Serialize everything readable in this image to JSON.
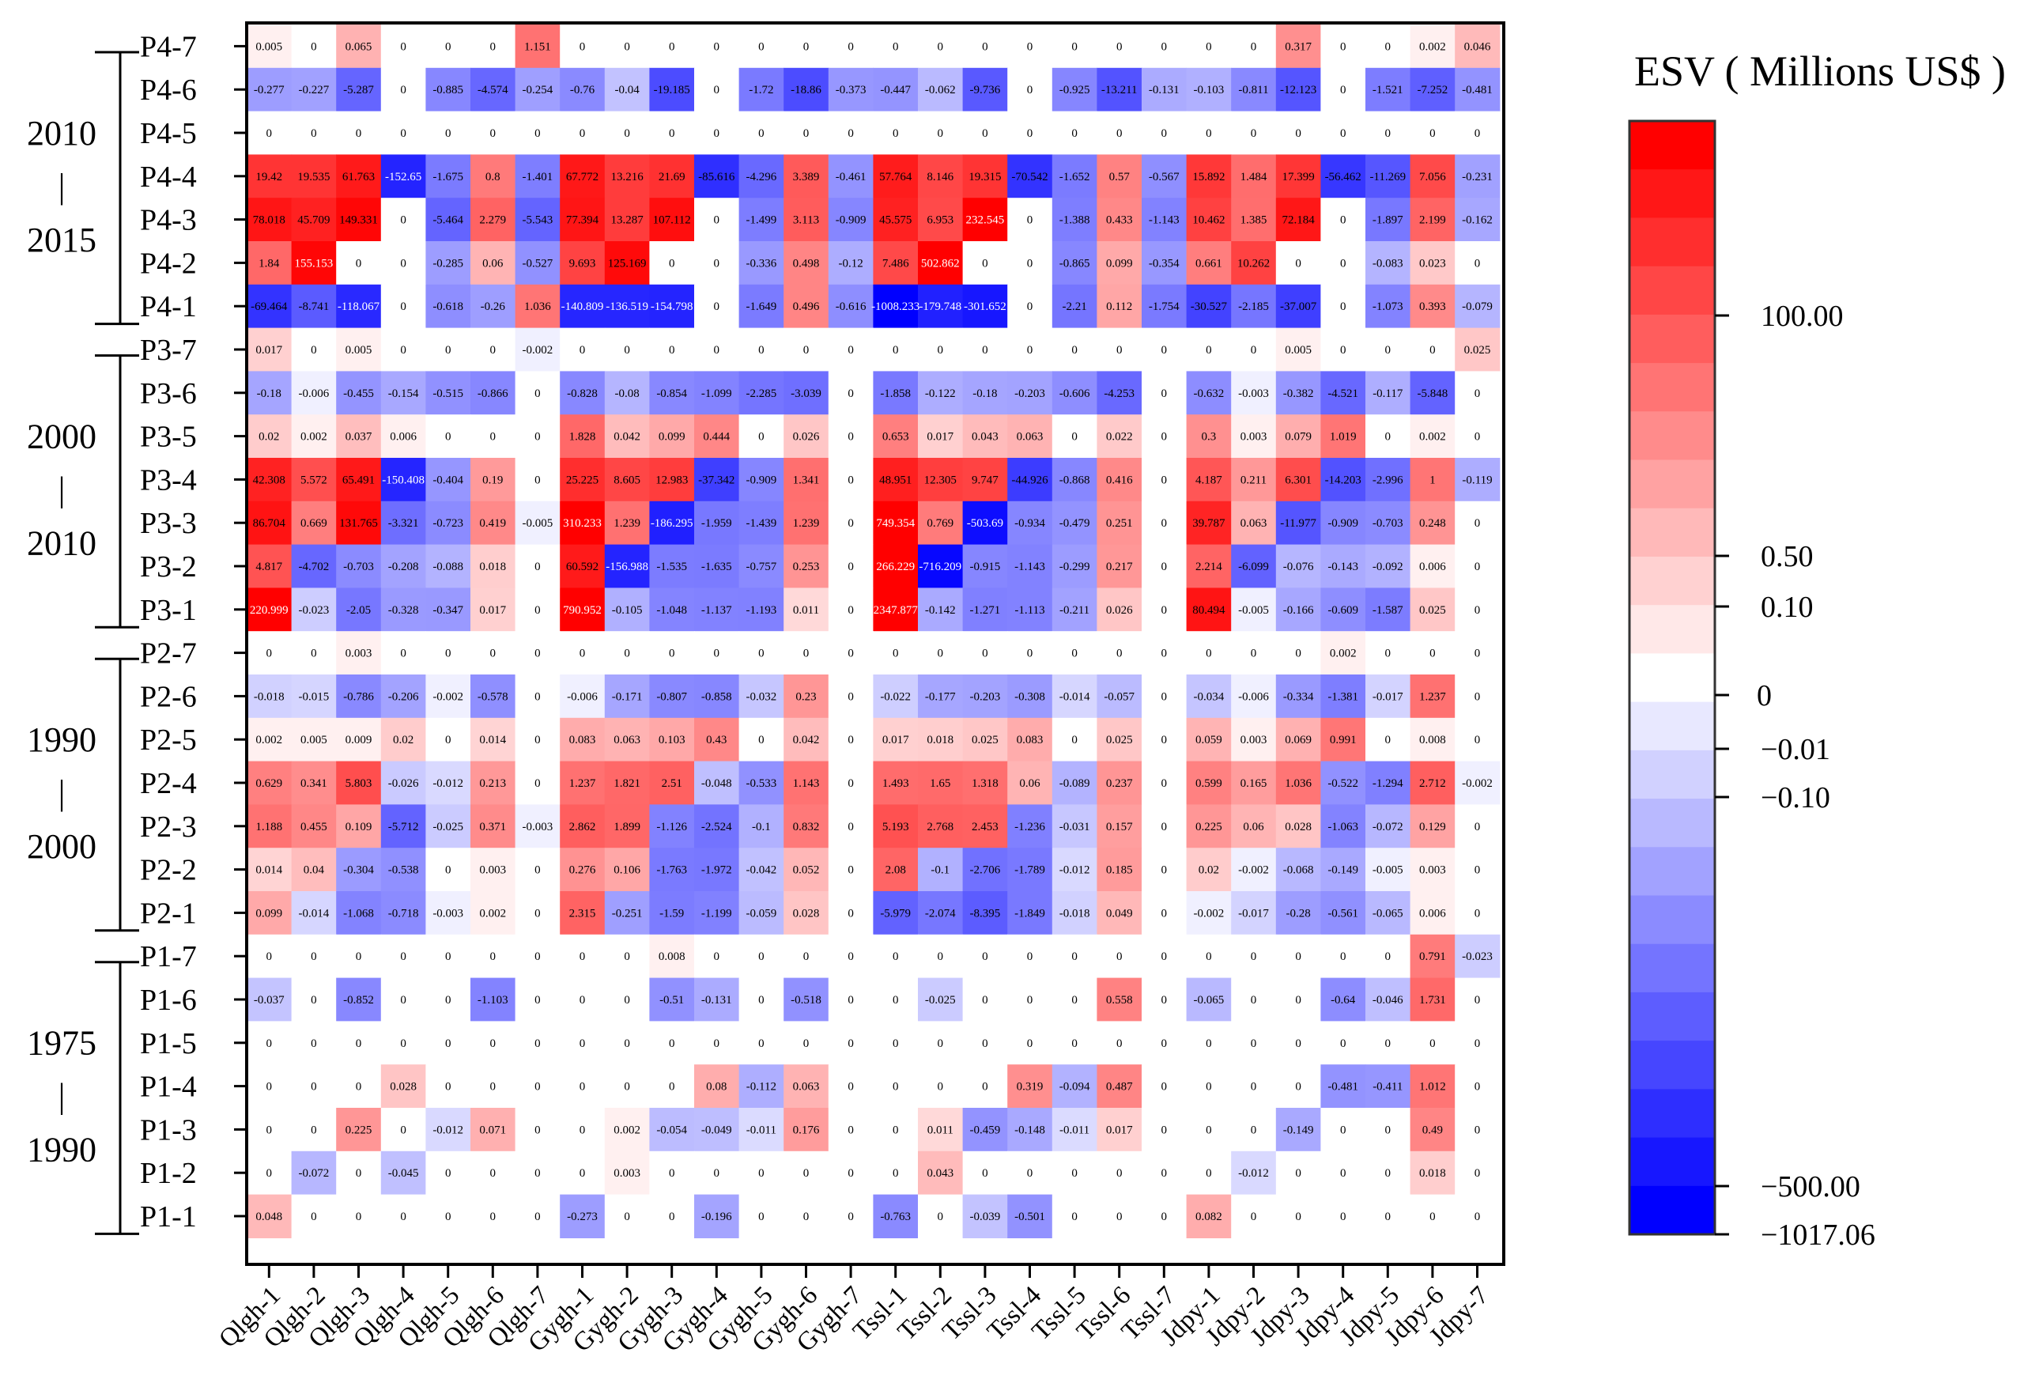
{
  "chart_data": {
    "type": "heatmap",
    "title": "",
    "xlabel": "",
    "ylabel": "",
    "colorbar": {
      "title": "ESV ( Millions US$ )",
      "ticks": [
        "100.00",
        "0.50",
        "0.10",
        "0",
        "−0.01",
        "−0.10",
        "−500.00",
        "−1017.06"
      ],
      "max": 200,
      "min": -1017.06,
      "positive_color": "#ff0000",
      "negative_color": "#0000ff",
      "zero_color": "#ffffff"
    },
    "columns": [
      "Qlgh-1",
      "Qlgh-2",
      "Qlgh-3",
      "Qlgh-4",
      "Qlgh-5",
      "Qlgh-6",
      "Qlgh-7",
      "Gygh-1",
      "Gygh-2",
      "Gygh-3",
      "Gygh-4",
      "Gygh-5",
      "Gygh-6",
      "Gygh-7",
      "Tssl-1",
      "Tssl-2",
      "Tssl-3",
      "Tssl-4",
      "Tssl-5",
      "Tssl-6",
      "Tssl-7",
      "Jdpy-1",
      "Jdpy-2",
      "Jdpy-3",
      "Jdpy-4",
      "Jdpy-5",
      "Jdpy-6",
      "Jdpy-7"
    ],
    "rows": [
      "P4-7",
      "P4-6",
      "P4-5",
      "P4-4",
      "P4-3",
      "P4-2",
      "P4-1",
      "P3-7",
      "P3-6",
      "P3-5",
      "P3-4",
      "P3-3",
      "P3-2",
      "P3-1",
      "P2-7",
      "P2-6",
      "P2-5",
      "P2-4",
      "P2-3",
      "P2-2",
      "P2-1",
      "P1-7",
      "P1-6",
      "P1-5",
      "P1-4",
      "P1-3",
      "P1-2",
      "P1-1"
    ],
    "periods": [
      {
        "start": "2010",
        "sep": "|",
        "end": "2015"
      },
      {
        "start": "2000",
        "sep": "|",
        "end": "2010"
      },
      {
        "start": "1990",
        "sep": "|",
        "end": "2000"
      },
      {
        "start": "1975",
        "sep": "|",
        "end": "1990"
      }
    ],
    "values": [
      [
        "0.005",
        "0",
        "0.065",
        "0",
        "0",
        "0",
        "1.151",
        "0",
        "0",
        "0",
        "0",
        "0",
        "0",
        "0",
        "0",
        "0",
        "0",
        "0",
        "0",
        "0",
        "0",
        "0",
        "0",
        "0.317",
        "0",
        "0",
        "0.002",
        "0.046"
      ],
      [
        "-0.277",
        "-0.227",
        "-5.287",
        "0",
        "-0.885",
        "-4.574",
        "-0.254",
        "-0.76",
        "-0.04",
        "-19.185",
        "0",
        "-1.72",
        "-18.86",
        "-0.373",
        "-0.447",
        "-0.062",
        "-9.736",
        "0",
        "-0.925",
        "-13.211",
        "-0.131",
        "-0.103",
        "-0.811",
        "-12.123",
        "0",
        "-1.521",
        "-7.252",
        "-0.481"
      ],
      [
        "0",
        "0",
        "0",
        "0",
        "0",
        "0",
        "0",
        "0",
        "0",
        "0",
        "0",
        "0",
        "0",
        "0",
        "0",
        "0",
        "0",
        "0",
        "0",
        "0",
        "0",
        "0",
        "0",
        "0",
        "0",
        "0",
        "0",
        "0"
      ],
      [
        "19.42",
        "19.535",
        "61.763",
        "-152.65",
        "-1.675",
        "0.8",
        "-1.401",
        "67.772",
        "13.216",
        "21.69",
        "-85.616",
        "-4.296",
        "3.389",
        "-0.461",
        "57.764",
        "8.146",
        "19.315",
        "-70.542",
        "-1.652",
        "0.57",
        "-0.567",
        "15.892",
        "1.484",
        "17.399",
        "-56.462",
        "-11.269",
        "7.056",
        "-0.231"
      ],
      [
        "78.018",
        "45.709",
        "149.331",
        "0",
        "-5.464",
        "2.279",
        "-5.543",
        "77.394",
        "13.287",
        "107.112",
        "0",
        "-1.499",
        "3.113",
        "-0.909",
        "45.575",
        "6.953",
        "232.545",
        "0",
        "-1.388",
        "0.433",
        "-1.143",
        "10.462",
        "1.385",
        "72.184",
        "0",
        "-1.897",
        "2.199",
        "-0.162"
      ],
      [
        "1.84",
        "155.153",
        "0",
        "0",
        "-0.285",
        "0.06",
        "-0.527",
        "9.693",
        "125.169",
        "0",
        "0",
        "-0.336",
        "0.498",
        "-0.12",
        "7.486",
        "502.862",
        "0",
        "0",
        "-0.865",
        "0.099",
        "-0.354",
        "0.661",
        "10.262",
        "0",
        "0",
        "-0.083",
        "0.023",
        "0"
      ],
      [
        "-69.464",
        "-8.741",
        "-118.067",
        "0",
        "-0.618",
        "-0.26",
        "1.036",
        "-140.809",
        "-136.519",
        "-154.798",
        "0",
        "-1.649",
        "0.496",
        "-0.616",
        "-1008.233",
        "-179.748",
        "-301.652",
        "0",
        "-2.21",
        "0.112",
        "-1.754",
        "-30.527",
        "-2.185",
        "-37.007",
        "0",
        "-1.073",
        "0.393",
        "-0.079"
      ],
      [
        "0.017",
        "0",
        "0.005",
        "0",
        "0",
        "0",
        "-0.002",
        "0",
        "0",
        "0",
        "0",
        "0",
        "0",
        "0",
        "0",
        "0",
        "0",
        "0",
        "0",
        "0",
        "0",
        "0",
        "0",
        "0.005",
        "0",
        "0",
        "0",
        "0.025"
      ],
      [
        "-0.18",
        "-0.006",
        "-0.455",
        "-0.154",
        "-0.515",
        "-0.866",
        "0",
        "-0.828",
        "-0.08",
        "-0.854",
        "-1.099",
        "-2.285",
        "-3.039",
        "0",
        "-1.858",
        "-0.122",
        "-0.18",
        "-0.203",
        "-0.606",
        "-4.253",
        "0",
        "-0.632",
        "-0.003",
        "-0.382",
        "-4.521",
        "-0.117",
        "-5.848",
        "0"
      ],
      [
        "0.02",
        "0.002",
        "0.037",
        "0.006",
        "0",
        "0",
        "0",
        "1.828",
        "0.042",
        "0.099",
        "0.444",
        "0",
        "0.026",
        "0",
        "0.653",
        "0.017",
        "0.043",
        "0.063",
        "0",
        "0.022",
        "0",
        "0.3",
        "0.003",
        "0.079",
        "1.019",
        "0",
        "0.002",
        "0"
      ],
      [
        "42.308",
        "5.572",
        "65.491",
        "-150.408",
        "-0.404",
        "0.19",
        "0",
        "25.225",
        "8.605",
        "12.983",
        "-37.342",
        "-0.909",
        "1.341",
        "0",
        "48.951",
        "12.305",
        "9.747",
        "-44.926",
        "-0.868",
        "0.416",
        "0",
        "4.187",
        "0.211",
        "6.301",
        "-14.203",
        "-2.996",
        "1",
        "-0.119"
      ],
      [
        "86.704",
        "0.669",
        "131.765",
        "-3.321",
        "-0.723",
        "0.419",
        "-0.005",
        "310.233",
        "1.239",
        "-186.295",
        "-1.959",
        "-1.439",
        "1.239",
        "0",
        "749.354",
        "0.769",
        "-503.69",
        "-0.934",
        "-0.479",
        "0.251",
        "0",
        "39.787",
        "0.063",
        "-11.977",
        "-0.909",
        "-0.703",
        "0.248",
        "0"
      ],
      [
        "4.817",
        "-4.702",
        "-0.703",
        "-0.208",
        "-0.088",
        "0.018",
        "0",
        "60.592",
        "-156.988",
        "-1.535",
        "-1.635",
        "-0.757",
        "0.253",
        "0",
        "266.229",
        "-716.209",
        "-0.915",
        "-1.143",
        "-0.299",
        "0.217",
        "0",
        "2.214",
        "-6.099",
        "-0.076",
        "-0.143",
        "-0.092",
        "0.006",
        "0"
      ],
      [
        "220.999",
        "-0.023",
        "-2.05",
        "-0.328",
        "-0.347",
        "0.017",
        "0",
        "790.952",
        "-0.105",
        "-1.048",
        "-1.137",
        "-1.193",
        "0.011",
        "0",
        "2347.877",
        "-0.142",
        "-1.271",
        "-1.113",
        "-0.211",
        "0.026",
        "0",
        "80.494",
        "-0.005",
        "-0.166",
        "-0.609",
        "-1.587",
        "0.025",
        "0"
      ],
      [
        "0",
        "0",
        "0.003",
        "0",
        "0",
        "0",
        "0",
        "0",
        "0",
        "0",
        "0",
        "0",
        "0",
        "0",
        "0",
        "0",
        "0",
        "0",
        "0",
        "0",
        "0",
        "0",
        "0",
        "0",
        "0.002",
        "0",
        "0",
        "0"
      ],
      [
        "-0.018",
        "-0.015",
        "-0.786",
        "-0.206",
        "-0.002",
        "-0.578",
        "0",
        "-0.006",
        "-0.171",
        "-0.807",
        "-0.858",
        "-0.032",
        "0.23",
        "0",
        "-0.022",
        "-0.177",
        "-0.203",
        "-0.308",
        "-0.014",
        "-0.057",
        "0",
        "-0.034",
        "-0.006",
        "-0.334",
        "-1.381",
        "-0.017",
        "1.237",
        "0"
      ],
      [
        "0.002",
        "0.005",
        "0.009",
        "0.02",
        "0",
        "0.014",
        "0",
        "0.083",
        "0.063",
        "0.103",
        "0.43",
        "0",
        "0.042",
        "0",
        "0.017",
        "0.018",
        "0.025",
        "0.083",
        "0",
        "0.025",
        "0",
        "0.059",
        "0.003",
        "0.069",
        "0.991",
        "0",
        "0.008",
        "0"
      ],
      [
        "0.629",
        "0.341",
        "5.803",
        "-0.026",
        "-0.012",
        "0.213",
        "0",
        "1.237",
        "1.821",
        "2.51",
        "-0.048",
        "-0.533",
        "1.143",
        "0",
        "1.493",
        "1.65",
        "1.318",
        "0.06",
        "-0.089",
        "0.237",
        "0",
        "0.599",
        "0.165",
        "1.036",
        "-0.522",
        "-1.294",
        "2.712",
        "-0.002"
      ],
      [
        "1.188",
        "0.455",
        "0.109",
        "-5.712",
        "-0.025",
        "0.371",
        "-0.003",
        "2.862",
        "1.899",
        "-1.126",
        "-2.524",
        "-0.1",
        "0.832",
        "0",
        "5.193",
        "2.768",
        "2.453",
        "-1.236",
        "-0.031",
        "0.157",
        "0",
        "0.225",
        "0.06",
        "0.028",
        "-1.063",
        "-0.072",
        "0.129",
        "0"
      ],
      [
        "0.014",
        "0.04",
        "-0.304",
        "-0.538",
        "0",
        "0.003",
        "0",
        "0.276",
        "0.106",
        "-1.763",
        "-1.972",
        "-0.042",
        "0.052",
        "0",
        "2.08",
        "-0.1",
        "-2.706",
        "-1.789",
        "-0.012",
        "0.185",
        "0",
        "0.02",
        "-0.002",
        "-0.068",
        "-0.149",
        "-0.005",
        "0.003",
        "0"
      ],
      [
        "0.099",
        "-0.014",
        "-1.068",
        "-0.718",
        "-0.003",
        "0.002",
        "0",
        "2.315",
        "-0.251",
        "-1.59",
        "-1.199",
        "-0.059",
        "0.028",
        "0",
        "-5.979",
        "-2.074",
        "-8.395",
        "-1.849",
        "-0.018",
        "0.049",
        "0",
        "-0.002",
        "-0.017",
        "-0.28",
        "-0.561",
        "-0.065",
        "0.006",
        "0"
      ],
      [
        "0",
        "0",
        "0",
        "0",
        "0",
        "0",
        "0",
        "0",
        "0",
        "0.008",
        "0",
        "0",
        "0",
        "0",
        "0",
        "0",
        "0",
        "0",
        "0",
        "0",
        "0",
        "0",
        "0",
        "0",
        "0",
        "0",
        "0.791",
        "-0.023"
      ],
      [
        "-0.037",
        "0",
        "-0.852",
        "0",
        "0",
        "-1.103",
        "0",
        "0",
        "0",
        "-0.51",
        "-0.131",
        "0",
        "-0.518",
        "0",
        "0",
        "-0.025",
        "0",
        "0",
        "0",
        "0.558",
        "0",
        "-0.065",
        "0",
        "0",
        "-0.64",
        "-0.046",
        "1.731",
        "0"
      ],
      [
        "0",
        "0",
        "0",
        "0",
        "0",
        "0",
        "0",
        "0",
        "0",
        "0",
        "0",
        "0",
        "0",
        "0",
        "0",
        "0",
        "0",
        "0",
        "0",
        "0",
        "0",
        "0",
        "0",
        "0",
        "0",
        "0",
        "0",
        "0"
      ],
      [
        "0",
        "0",
        "0",
        "0.028",
        "0",
        "0",
        "0",
        "0",
        "0",
        "0",
        "0.08",
        "-0.112",
        "0.063",
        "0",
        "0",
        "0",
        "0",
        "0.319",
        "-0.094",
        "0.487",
        "0",
        "0",
        "0",
        "0",
        "-0.481",
        "-0.411",
        "1.012",
        "0"
      ],
      [
        "0",
        "0",
        "0.225",
        "0",
        "-0.012",
        "0.071",
        "0",
        "0",
        "0.002",
        "-0.054",
        "-0.049",
        "-0.011",
        "0.176",
        "0",
        "0",
        "0.011",
        "-0.459",
        "-0.148",
        "-0.011",
        "0.017",
        "0",
        "0",
        "0",
        "-0.149",
        "0",
        "0",
        "0.49",
        "0"
      ],
      [
        "0",
        "-0.072",
        "0",
        "-0.045",
        "0",
        "0",
        "0",
        "0",
        "0.003",
        "0",
        "0",
        "0",
        "0",
        "0",
        "0",
        "0.043",
        "0",
        "0",
        "0",
        "0",
        "0",
        "0",
        "-0.012",
        "0",
        "0",
        "0",
        "0.018",
        "0"
      ],
      [
        "0.048",
        "0",
        "0",
        "0",
        "0",
        "0",
        "0",
        "-0.273",
        "0",
        "0",
        "-0.196",
        "0",
        "0",
        "0",
        "-0.763",
        "0",
        "-0.039",
        "-0.501",
        "0",
        "0",
        "0",
        "0.082",
        "0",
        "0",
        "0",
        "0",
        "0",
        "0"
      ]
    ]
  }
}
